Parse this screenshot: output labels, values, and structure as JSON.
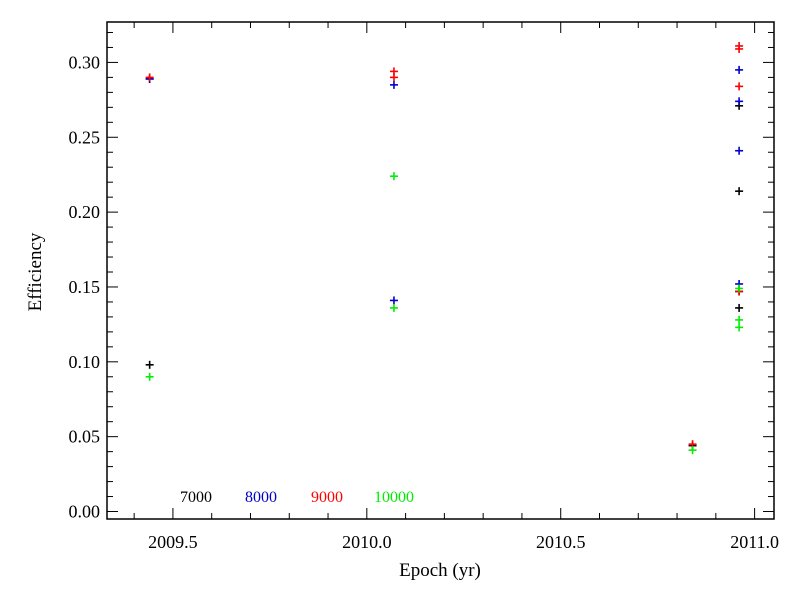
{
  "chart_data": {
    "type": "scatter",
    "title": "",
    "xlabel": "Epoch (yr)",
    "ylabel": "Efficiency",
    "xlim": [
      2009.33,
      2011.05
    ],
    "ylim": [
      -0.005,
      0.327
    ],
    "x_ticks": [
      2009.5,
      2010.0,
      2010.5,
      2011.0
    ],
    "x_tick_labels": [
      "2009.5",
      "2010.0",
      "2010.5",
      "2011.0"
    ],
    "y_ticks": [
      0.0,
      0.05,
      0.1,
      0.15,
      0.2,
      0.25,
      0.3
    ],
    "y_tick_labels": [
      "0.00",
      "0.05",
      "0.10",
      "0.15",
      "0.20",
      "0.25",
      "0.30"
    ],
    "marker": "plus",
    "grid": false,
    "legend_position": "bottom-left",
    "series": [
      {
        "name": "7000",
        "color": "#000000",
        "x": [
          2009.44,
          2009.44,
          2010.84,
          2010.96,
          2010.96,
          2010.96,
          2010.96
        ],
        "y": [
          0.289,
          0.098,
          0.044,
          0.271,
          0.214,
          0.147,
          0.136
        ]
      },
      {
        "name": "8000",
        "color": "#0000cc",
        "x": [
          2009.44,
          2010.07,
          2010.07,
          2010.96,
          2010.96,
          2010.96,
          2010.96
        ],
        "y": [
          0.289,
          0.285,
          0.141,
          0.295,
          0.274,
          0.241,
          0.152
        ]
      },
      {
        "name": "9000",
        "color": "#ff0000",
        "x": [
          2009.44,
          2010.07,
          2010.07,
          2010.84,
          2010.96,
          2010.96,
          2010.96,
          2010.96
        ],
        "y": [
          0.29,
          0.294,
          0.29,
          0.045,
          0.311,
          0.309,
          0.284,
          0.147
        ]
      },
      {
        "name": "10000",
        "color": "#00ee00",
        "x": [
          2009.44,
          2010.07,
          2010.07,
          2010.84,
          2010.96,
          2010.96,
          2010.96
        ],
        "y": [
          0.09,
          0.224,
          0.136,
          0.041,
          0.149,
          0.128,
          0.123
        ]
      }
    ]
  }
}
